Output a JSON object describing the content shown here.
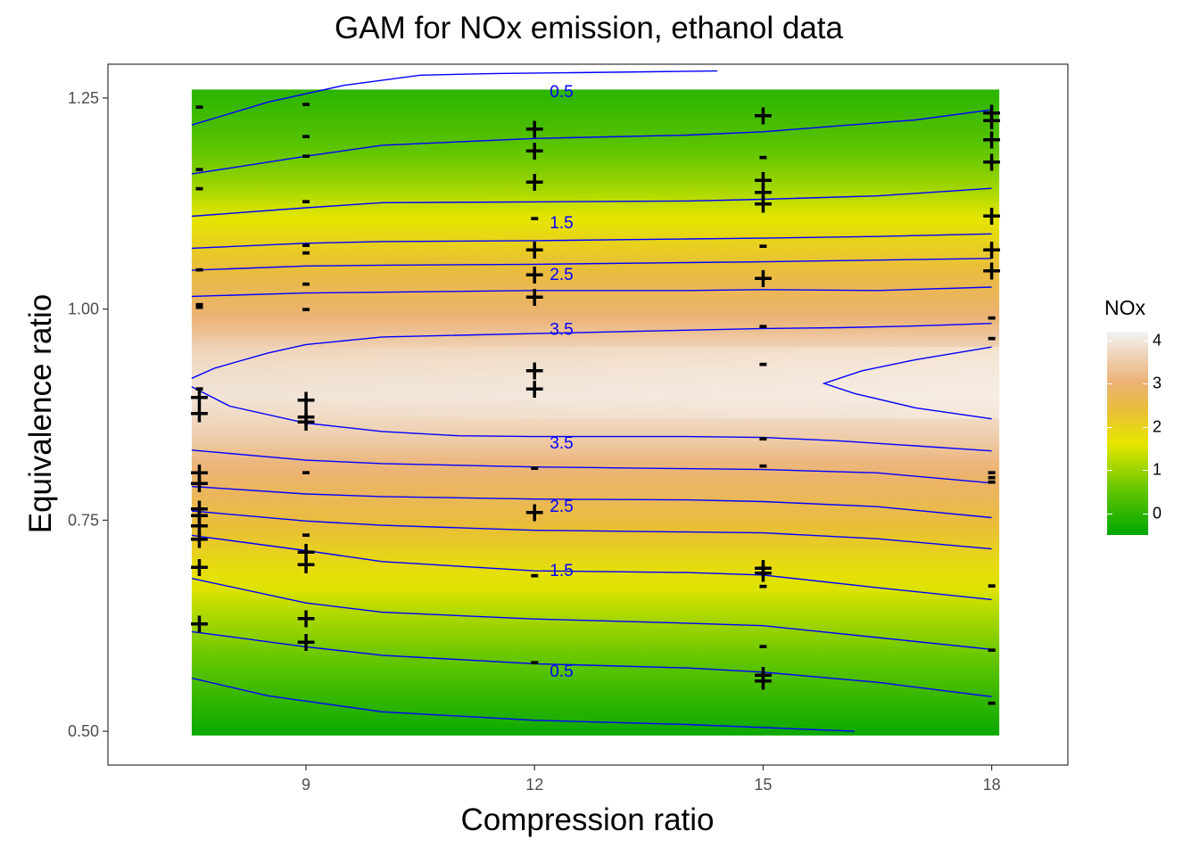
{
  "chart_data": {
    "type": "heatmap",
    "title": "GAM for NOx emission, ethanol data",
    "xlabel": "Compression ratio",
    "ylabel": "Equivalence ratio",
    "xlim": [
      6.4,
      19.0
    ],
    "ylim": [
      0.46,
      1.29
    ],
    "xticks": [
      9,
      12,
      15,
      18
    ],
    "xtick_labels": [
      "9",
      "12",
      "15",
      "18"
    ],
    "yticks": [
      0.5,
      0.75,
      1.0,
      1.25
    ],
    "ytick_labels": [
      "0.50",
      "0.75",
      "1.00",
      "1.25"
    ],
    "grid": false,
    "legend": {
      "title": "NOx",
      "position": "right",
      "ticks": [
        0,
        1,
        2,
        3,
        4
      ],
      "tick_labels": [
        "0",
        "1",
        "2",
        "3",
        "4"
      ],
      "colors": [
        "#00a600",
        "#63c600",
        "#e6e600",
        "#e9bd3a",
        "#ecb176",
        "#f2f2f2"
      ],
      "range": [
        -0.5,
        4.2
      ]
    },
    "surface": {
      "x_range": [
        7.5,
        18.1
      ],
      "y_range": [
        0.495,
        1.26
      ],
      "rows": [
        {
          "y": 0.495,
          "value": -0.4
        },
        {
          "y": 0.55,
          "value": 0.1
        },
        {
          "y": 0.6,
          "value": 0.6
        },
        {
          "y": 0.65,
          "value": 1.1
        },
        {
          "y": 0.7,
          "value": 1.7
        },
        {
          "y": 0.75,
          "value": 2.4
        },
        {
          "y": 0.8,
          "value": 3.1
        },
        {
          "y": 0.85,
          "value": 3.7
        },
        {
          "y": 0.9,
          "value": 4.0
        },
        {
          "y": 0.95,
          "value": 3.8
        },
        {
          "y": 1.0,
          "value": 3.1
        },
        {
          "y": 1.05,
          "value": 2.3
        },
        {
          "y": 1.1,
          "value": 1.5
        },
        {
          "y": 1.15,
          "value": 0.8
        },
        {
          "y": 1.2,
          "value": 0.3
        },
        {
          "y": 1.26,
          "value": -0.1
        }
      ]
    },
    "contour_color": "#0000ff",
    "contours": [
      {
        "label": "",
        "points": [
          [
            7.5,
            0.563
          ],
          [
            8.5,
            0.542
          ],
          [
            10,
            0.523
          ],
          [
            12,
            0.513
          ],
          [
            14,
            0.508
          ],
          [
            16.2,
            0.5
          ]
        ]
      },
      {
        "label": "0.5",
        "label_x": 12.2,
        "label_y": 0.57,
        "points": [
          [
            7.5,
            0.618
          ],
          [
            9,
            0.6
          ],
          [
            10,
            0.59
          ],
          [
            12,
            0.58
          ],
          [
            14,
            0.575
          ],
          [
            15,
            0.57
          ],
          [
            16.5,
            0.558
          ],
          [
            18,
            0.541
          ]
        ]
      },
      {
        "label": "",
        "points": [
          [
            7.5,
            0.681
          ],
          [
            9,
            0.652
          ],
          [
            10,
            0.641
          ],
          [
            12,
            0.633
          ],
          [
            14,
            0.628
          ],
          [
            15,
            0.625
          ],
          [
            16.5,
            0.611
          ],
          [
            18,
            0.597
          ]
        ]
      },
      {
        "label": "1.5",
        "label_x": 12.2,
        "label_y": 0.689,
        "points": [
          [
            7.5,
            0.732
          ],
          [
            9,
            0.714
          ],
          [
            10,
            0.701
          ],
          [
            12,
            0.69
          ],
          [
            14,
            0.688
          ],
          [
            15,
            0.685
          ],
          [
            16.5,
            0.67
          ],
          [
            18,
            0.656
          ]
        ]
      },
      {
        "label": "",
        "points": [
          [
            7.5,
            0.761
          ],
          [
            9,
            0.749
          ],
          [
            10,
            0.744
          ],
          [
            12,
            0.738
          ],
          [
            14,
            0.736
          ],
          [
            15,
            0.735
          ],
          [
            16.5,
            0.728
          ],
          [
            18,
            0.716
          ]
        ]
      },
      {
        "label": "2.5",
        "label_x": 12.2,
        "label_y": 0.765,
        "points": [
          [
            7.5,
            0.79
          ],
          [
            9,
            0.781
          ],
          [
            10,
            0.778
          ],
          [
            12,
            0.775
          ],
          [
            14,
            0.774
          ],
          [
            15,
            0.772
          ],
          [
            16.5,
            0.766
          ],
          [
            18,
            0.753
          ]
        ]
      },
      {
        "label": "",
        "points": [
          [
            7.5,
            0.833
          ],
          [
            9,
            0.821
          ],
          [
            10,
            0.817
          ],
          [
            12,
            0.813
          ],
          [
            14,
            0.811
          ],
          [
            15,
            0.81
          ],
          [
            16.5,
            0.806
          ],
          [
            18,
            0.794
          ]
        ]
      },
      {
        "label": "3.5",
        "label_x": 12.2,
        "label_y": 0.84,
        "points": [
          [
            7.5,
            0.908
          ],
          [
            8,
            0.885
          ],
          [
            9,
            0.865
          ],
          [
            10,
            0.855
          ],
          [
            11,
            0.85
          ],
          [
            12,
            0.849
          ],
          [
            14,
            0.849
          ],
          [
            15,
            0.848
          ],
          [
            16,
            0.844
          ],
          [
            17,
            0.838
          ],
          [
            18,
            0.832
          ]
        ]
      },
      {
        "label": "",
        "points": [
          [
            18.0,
            0.87
          ],
          [
            17,
            0.883
          ],
          [
            16.2,
            0.9
          ],
          [
            15.8,
            0.912
          ],
          [
            16.3,
            0.927
          ],
          [
            17,
            0.94
          ],
          [
            18,
            0.955
          ]
        ]
      },
      {
        "label": "3.5",
        "label_x": 12.2,
        "label_y": 0.975,
        "points": [
          [
            7.5,
            0.918
          ],
          [
            7.8,
            0.93
          ],
          [
            8.5,
            0.948
          ],
          [
            9,
            0.958
          ],
          [
            10,
            0.967
          ],
          [
            12,
            0.971
          ],
          [
            14,
            0.975
          ],
          [
            15,
            0.977
          ],
          [
            16,
            0.978
          ],
          [
            17,
            0.98
          ],
          [
            18,
            0.983
          ]
        ]
      },
      {
        "label": "",
        "points": [
          [
            7.5,
            1.015
          ],
          [
            9,
            1.019
          ],
          [
            10,
            1.02
          ],
          [
            12,
            1.022
          ],
          [
            14,
            1.022
          ],
          [
            15,
            1.023
          ],
          [
            16.5,
            1.022
          ],
          [
            18,
            1.026
          ]
        ]
      },
      {
        "label": "2.5",
        "label_x": 12.2,
        "label_y": 1.04,
        "points": [
          [
            7.5,
            1.046
          ],
          [
            9,
            1.051
          ],
          [
            10,
            1.052
          ],
          [
            12,
            1.053
          ],
          [
            14,
            1.055
          ],
          [
            15,
            1.056
          ],
          [
            16.5,
            1.058
          ],
          [
            18,
            1.06
          ]
        ]
      },
      {
        "label": "",
        "points": [
          [
            7.5,
            1.072
          ],
          [
            9,
            1.078
          ],
          [
            10,
            1.08
          ],
          [
            12,
            1.081
          ],
          [
            14,
            1.083
          ],
          [
            15,
            1.084
          ],
          [
            16.5,
            1.086
          ],
          [
            18,
            1.089
          ]
        ]
      },
      {
        "label": "1.5",
        "label_x": 12.2,
        "label_y": 1.101,
        "points": [
          [
            7.5,
            1.11
          ],
          [
            9,
            1.12
          ],
          [
            10,
            1.126
          ],
          [
            12,
            1.127
          ],
          [
            14,
            1.128
          ],
          [
            15,
            1.13
          ],
          [
            16.5,
            1.134
          ],
          [
            18,
            1.143
          ]
        ]
      },
      {
        "label": "",
        "points": [
          [
            7.5,
            1.16
          ],
          [
            9,
            1.181
          ],
          [
            10,
            1.194
          ],
          [
            12,
            1.202
          ],
          [
            14,
            1.206
          ],
          [
            15,
            1.21
          ],
          [
            16,
            1.217
          ],
          [
            17,
            1.224
          ],
          [
            18,
            1.236
          ]
        ]
      },
      {
        "label": "0.5",
        "label_x": 12.2,
        "label_y": 1.256,
        "points": [
          [
            7.5,
            1.218
          ],
          [
            8.5,
            1.245
          ],
          [
            9.5,
            1.265
          ],
          [
            10.5,
            1.277
          ],
          [
            11.5,
            1.279
          ],
          [
            12.5,
            1.28
          ],
          [
            13.5,
            1.281
          ],
          [
            14.4,
            1.282
          ]
        ]
      }
    ],
    "observations": [
      {
        "x": 7.6,
        "y": 1.24,
        "sign": "-"
      },
      {
        "x": 7.6,
        "y": 1.166,
        "sign": "-"
      },
      {
        "x": 7.6,
        "y": 1.143,
        "sign": "-"
      },
      {
        "x": 7.6,
        "y": 1.047,
        "sign": "-"
      },
      {
        "x": 7.6,
        "y": 1.006,
        "sign": "-"
      },
      {
        "x": 7.6,
        "y": 1.003,
        "sign": "-"
      },
      {
        "x": 7.6,
        "y": 0.906,
        "sign": "-"
      },
      {
        "x": 7.6,
        "y": 0.895,
        "sign": "+"
      },
      {
        "x": 7.6,
        "y": 0.876,
        "sign": "+"
      },
      {
        "x": 7.6,
        "y": 0.806,
        "sign": "+"
      },
      {
        "x": 7.6,
        "y": 0.793,
        "sign": "+"
      },
      {
        "x": 7.6,
        "y": 0.763,
        "sign": "+"
      },
      {
        "x": 7.6,
        "y": 0.755,
        "sign": "+"
      },
      {
        "x": 7.6,
        "y": 0.743,
        "sign": "+"
      },
      {
        "x": 7.6,
        "y": 0.727,
        "sign": "+"
      },
      {
        "x": 7.6,
        "y": 0.694,
        "sign": "+"
      },
      {
        "x": 7.6,
        "y": 0.627,
        "sign": "+"
      },
      {
        "x": 9,
        "y": 1.243,
        "sign": "-"
      },
      {
        "x": 9,
        "y": 1.205,
        "sign": "-"
      },
      {
        "x": 9,
        "y": 1.182,
        "sign": "-"
      },
      {
        "x": 9,
        "y": 1.128,
        "sign": "-"
      },
      {
        "x": 9,
        "y": 1.076,
        "sign": "-"
      },
      {
        "x": 9,
        "y": 1.067,
        "sign": "-"
      },
      {
        "x": 9,
        "y": 1.03,
        "sign": "-"
      },
      {
        "x": 9,
        "y": 1.0,
        "sign": "-"
      },
      {
        "x": 9,
        "y": 0.892,
        "sign": "+"
      },
      {
        "x": 9,
        "y": 0.872,
        "sign": "+"
      },
      {
        "x": 9,
        "y": 0.866,
        "sign": "+"
      },
      {
        "x": 9,
        "y": 0.807,
        "sign": "-"
      },
      {
        "x": 9,
        "y": 0.733,
        "sign": "-"
      },
      {
        "x": 9,
        "y": 0.712,
        "sign": "+"
      },
      {
        "x": 9,
        "y": 0.697,
        "sign": "+"
      },
      {
        "x": 9,
        "y": 0.633,
        "sign": "+"
      },
      {
        "x": 9,
        "y": 0.605,
        "sign": "+"
      },
      {
        "x": 12,
        "y": 1.213,
        "sign": "+"
      },
      {
        "x": 12,
        "y": 1.187,
        "sign": "+"
      },
      {
        "x": 12,
        "y": 1.15,
        "sign": "+"
      },
      {
        "x": 12,
        "y": 1.108,
        "sign": "-"
      },
      {
        "x": 12,
        "y": 1.07,
        "sign": "+"
      },
      {
        "x": 12,
        "y": 1.04,
        "sign": "+"
      },
      {
        "x": 12,
        "y": 1.014,
        "sign": "+"
      },
      {
        "x": 12,
        "y": 0.927,
        "sign": "+"
      },
      {
        "x": 12,
        "y": 0.905,
        "sign": "+"
      },
      {
        "x": 12,
        "y": 0.812,
        "sign": "-"
      },
      {
        "x": 12,
        "y": 0.759,
        "sign": "+"
      },
      {
        "x": 12,
        "y": 0.685,
        "sign": "-"
      },
      {
        "x": 12,
        "y": 0.582,
        "sign": "-"
      },
      {
        "x": 15,
        "y": 1.229,
        "sign": "+"
      },
      {
        "x": 15,
        "y": 1.18,
        "sign": "-"
      },
      {
        "x": 15,
        "y": 1.152,
        "sign": "+"
      },
      {
        "x": 15,
        "y": 1.138,
        "sign": "+"
      },
      {
        "x": 15,
        "y": 1.124,
        "sign": "+"
      },
      {
        "x": 15,
        "y": 1.075,
        "sign": "-"
      },
      {
        "x": 15,
        "y": 1.036,
        "sign": "+"
      },
      {
        "x": 15,
        "y": 0.98,
        "sign": "-"
      },
      {
        "x": 15,
        "y": 0.935,
        "sign": "-"
      },
      {
        "x": 15,
        "y": 0.847,
        "sign": "-"
      },
      {
        "x": 15,
        "y": 0.815,
        "sign": "-"
      },
      {
        "x": 15,
        "y": 0.693,
        "sign": "+"
      },
      {
        "x": 15,
        "y": 0.687,
        "sign": "+"
      },
      {
        "x": 15,
        "y": 0.672,
        "sign": "-"
      },
      {
        "x": 15,
        "y": 0.601,
        "sign": "-"
      },
      {
        "x": 15,
        "y": 0.566,
        "sign": "+"
      },
      {
        "x": 15,
        "y": 0.559,
        "sign": "+"
      },
      {
        "x": 18,
        "y": 1.232,
        "sign": "+"
      },
      {
        "x": 18,
        "y": 1.223,
        "sign": "+"
      },
      {
        "x": 18,
        "y": 1.2,
        "sign": "+"
      },
      {
        "x": 18,
        "y": 1.174,
        "sign": "+"
      },
      {
        "x": 18,
        "y": 1.11,
        "sign": "+"
      },
      {
        "x": 18,
        "y": 1.07,
        "sign": "+"
      },
      {
        "x": 18,
        "y": 1.045,
        "sign": "+"
      },
      {
        "x": 18,
        "y": 0.99,
        "sign": "-"
      },
      {
        "x": 18,
        "y": 0.966,
        "sign": "-"
      },
      {
        "x": 18,
        "y": 0.807,
        "sign": "-"
      },
      {
        "x": 18,
        "y": 0.801,
        "sign": "-"
      },
      {
        "x": 18,
        "y": 0.796,
        "sign": "-"
      },
      {
        "x": 18,
        "y": 0.673,
        "sign": "-"
      },
      {
        "x": 18,
        "y": 0.597,
        "sign": "-"
      },
      {
        "x": 18,
        "y": 0.534,
        "sign": "-"
      }
    ]
  }
}
